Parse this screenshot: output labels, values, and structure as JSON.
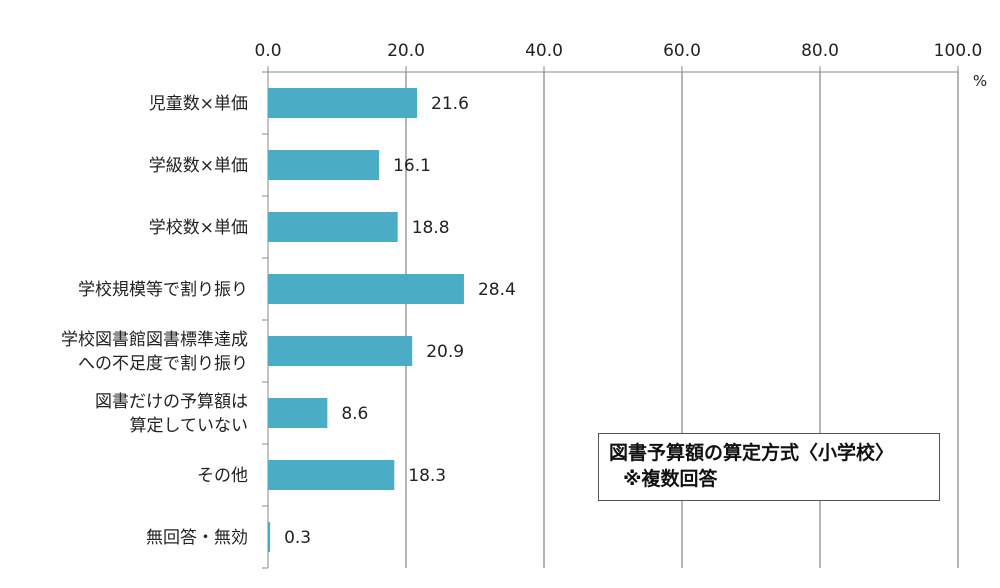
{
  "chart_data": {
    "type": "bar",
    "orientation": "horizontal",
    "categories": [
      [
        "児童数×単価"
      ],
      [
        "学級数×単価"
      ],
      [
        "学校数×単価"
      ],
      [
        "学校規模等で割り振り"
      ],
      [
        "学校図書館図書標準達成",
        "への不足度で割り振り"
      ],
      [
        "図書だけの予算額は",
        "算定していない"
      ],
      [
        "その他"
      ],
      [
        "無回答・無効"
      ]
    ],
    "values": [
      21.6,
      16.1,
      18.8,
      28.4,
      20.9,
      8.6,
      18.3,
      0.3
    ],
    "value_labels": [
      "21.6",
      "16.1",
      "18.8",
      "28.4",
      "20.9",
      "8.6",
      "18.3",
      "0.3"
    ],
    "xlim": [
      0,
      100
    ],
    "xticks": [
      "0.0",
      "20.0",
      "40.0",
      "60.0",
      "80.0",
      "100.0"
    ],
    "unit": "%",
    "grid": true,
    "bar_color": "#4bacc6",
    "title_box": {
      "line1": "図書予算額の算定方式〈小学校〉",
      "line2": "※複数回答"
    }
  }
}
